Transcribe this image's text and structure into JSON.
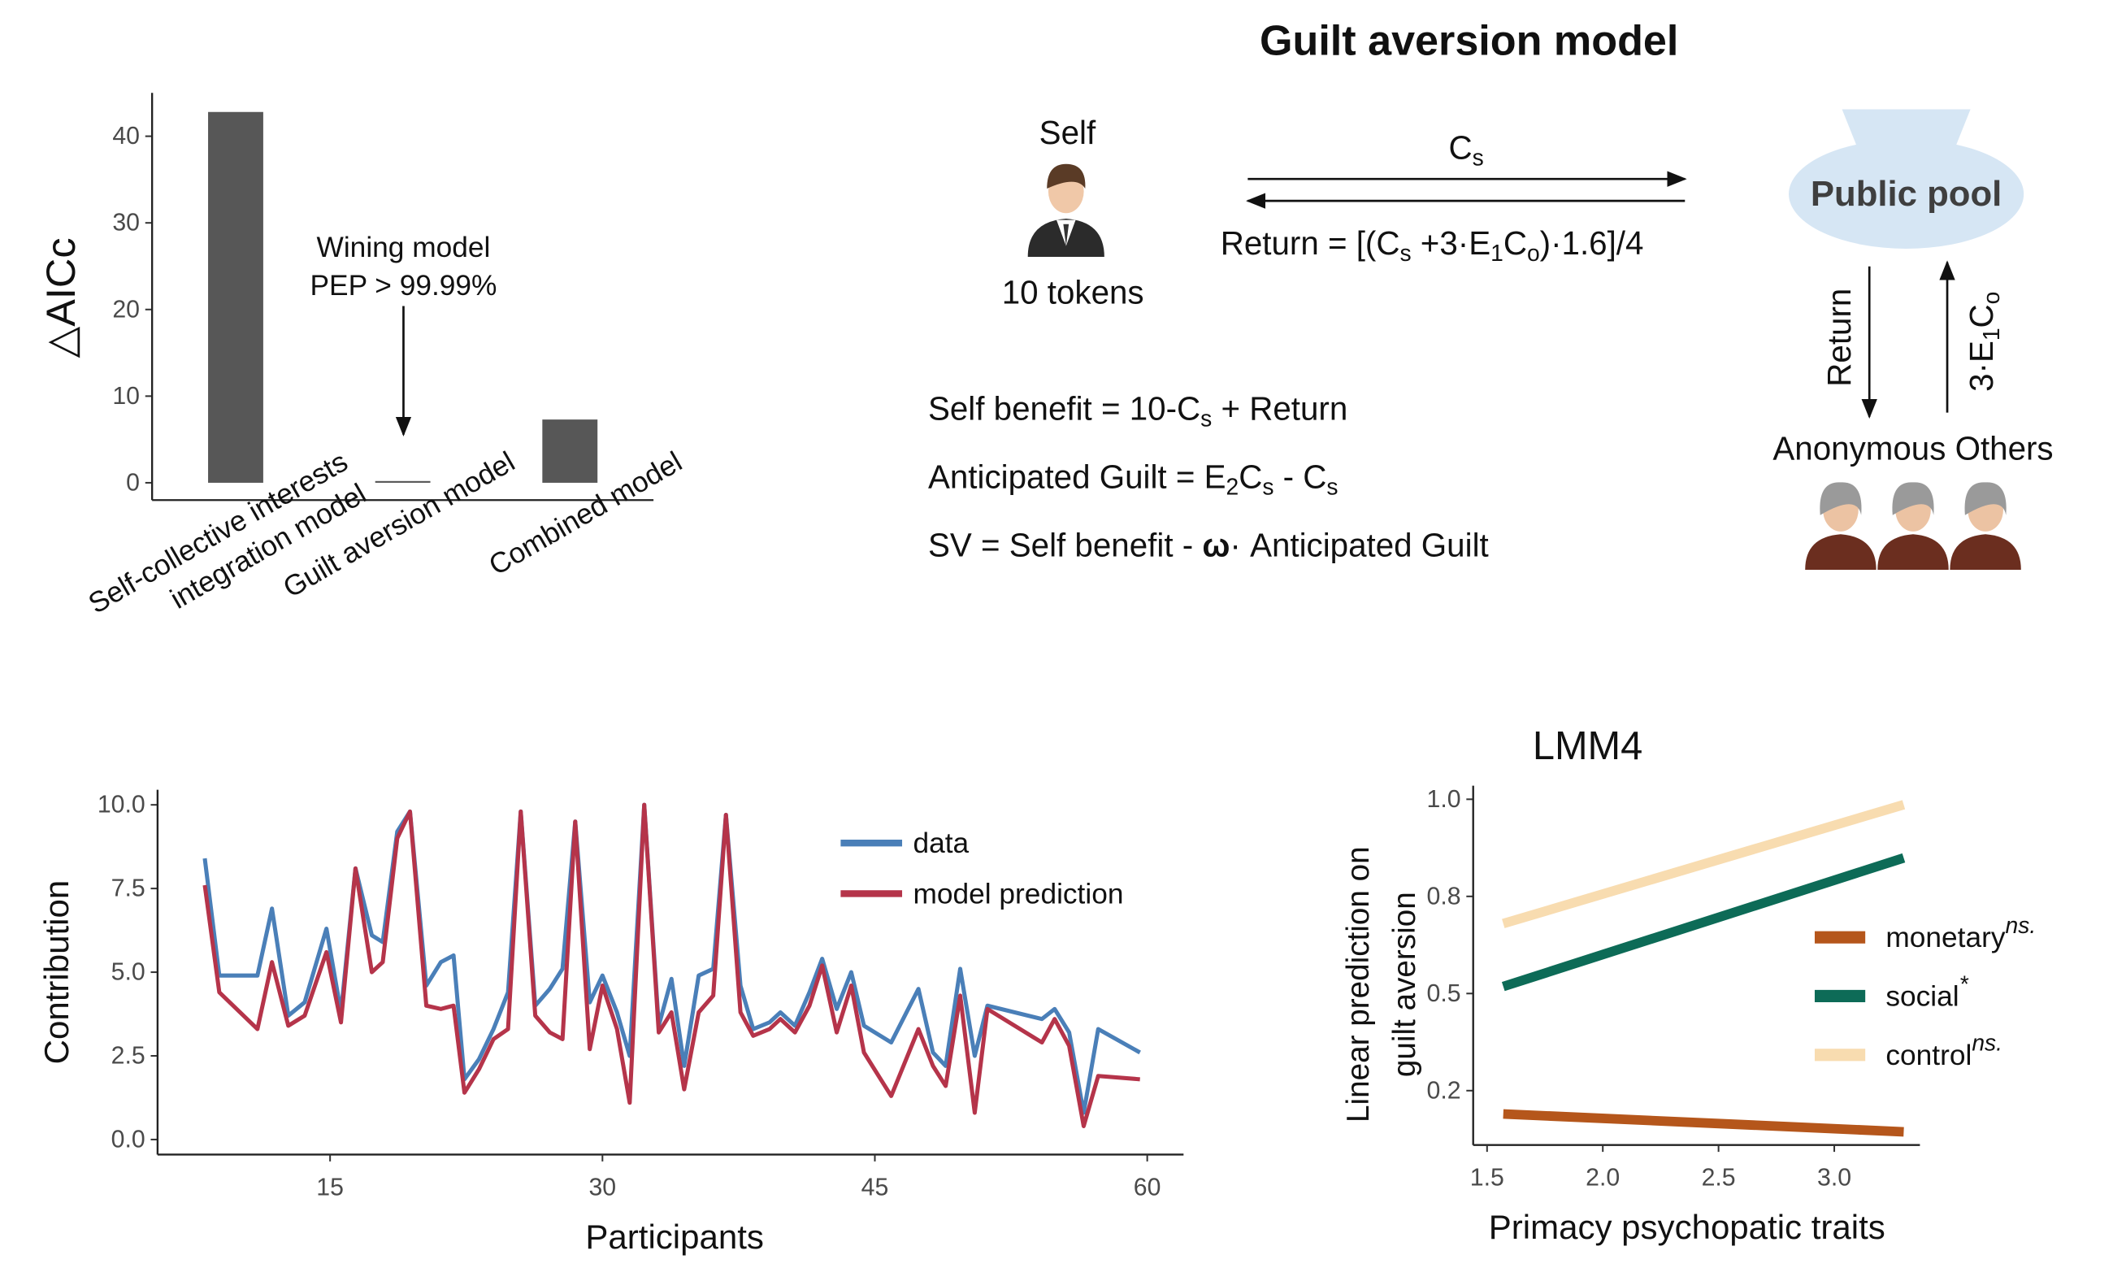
{
  "chart_data": [
    {
      "type": "bar",
      "y_label": "△AICc",
      "categories": [
        [
          "Self-collective interests",
          "integration model"
        ],
        [
          "Guilt aversion model"
        ],
        [
          "Combined model"
        ]
      ],
      "values": [
        42.8,
        0.2,
        7.3
      ],
      "color": "#575757",
      "ylim": [
        -2,
        45
      ],
      "yticks": [
        0,
        10,
        20,
        30,
        40
      ],
      "annotation": [
        "Wining model",
        "PEP > 99.99%"
      ]
    },
    {
      "type": "line",
      "x_label": "Participants",
      "y_label": "Contribution",
      "x": [
        8.1,
        8.9,
        11.0,
        11.8,
        12.7,
        13.6,
        14.8,
        15.6,
        16.4,
        17.3,
        17.9,
        18.7,
        19.4,
        20.3,
        21.1,
        21.8,
        22.4,
        23.2,
        24.0,
        24.8,
        25.5,
        26.3,
        27.1,
        27.8,
        28.5,
        29.3,
        30.0,
        30.8,
        31.5,
        32.3,
        33.1,
        33.8,
        34.5,
        35.3,
        36.1,
        36.8,
        37.6,
        38.3,
        39.2,
        39.8,
        40.6,
        41.4,
        42.1,
        42.9,
        43.7,
        44.4,
        45.9,
        47.4,
        48.2,
        48.9,
        49.7,
        50.5,
        51.2,
        54.2,
        54.9,
        55.7,
        56.5,
        57.3,
        59.6
      ],
      "series": [
        {
          "name": "data",
          "color": "#4a7fb8",
          "values": [
            8.4,
            4.9,
            4.9,
            6.9,
            3.7,
            4.1,
            6.3,
            3.8,
            8.1,
            6.1,
            5.9,
            9.2,
            9.8,
            4.6,
            5.3,
            5.5,
            1.8,
            2.4,
            3.3,
            4.4,
            9.8,
            4.0,
            4.5,
            5.1,
            9.5,
            4.1,
            4.9,
            3.8,
            2.5,
            10.0,
            3.4,
            4.8,
            2.2,
            4.9,
            5.1,
            9.7,
            4.6,
            3.3,
            3.5,
            3.8,
            3.4,
            4.4,
            5.4,
            3.9,
            5.0,
            3.4,
            2.9,
            4.5,
            2.6,
            2.2,
            5.1,
            2.5,
            4.0,
            3.6,
            3.9,
            3.2,
            0.8,
            3.3,
            2.6
          ]
        },
        {
          "name": "model prediction",
          "color": "#b5344a",
          "values": [
            7.6,
            4.4,
            3.3,
            5.3,
            3.4,
            3.7,
            5.6,
            3.5,
            8.1,
            5.0,
            5.3,
            9.0,
            9.8,
            4.0,
            3.9,
            4.0,
            1.4,
            2.1,
            3.0,
            3.3,
            9.8,
            3.7,
            3.2,
            3.0,
            9.5,
            2.7,
            4.6,
            3.3,
            1.1,
            10.0,
            3.2,
            3.8,
            1.5,
            3.8,
            4.3,
            9.7,
            3.8,
            3.1,
            3.3,
            3.6,
            3.2,
            4.0,
            5.2,
            3.2,
            4.6,
            2.6,
            1.3,
            3.3,
            2.2,
            1.6,
            4.3,
            0.8,
            3.9,
            2.9,
            3.6,
            2.8,
            0.4,
            1.9,
            1.8
          ]
        }
      ],
      "xlim": [
        5.5,
        62
      ],
      "xticks": [
        15,
        30,
        45,
        60
      ],
      "ylim": [
        -0.45,
        10.45
      ],
      "yticks": [
        {
          "value": 0,
          "label": "0.0"
        },
        {
          "value": 2.5,
          "label": "2.5"
        },
        {
          "value": 5,
          "label": "5.0"
        },
        {
          "value": 7.5,
          "label": "7.5"
        },
        {
          "value": 10,
          "label": "10.0"
        }
      ]
    },
    {
      "type": "line",
      "title": "LMM4",
      "x_label": "Primacy psychopatic traits",
      "y_label": [
        "Linear prediction on",
        "guilt aversion"
      ],
      "series": [
        {
          "name": "monetary",
          "superscript": "ns.",
          "color": "#b5561b",
          "x": [
            1.57,
            3.3
          ],
          "values": [
            0.19,
            0.144
          ]
        },
        {
          "name": "social",
          "superscript": "*",
          "color": "#0d6b57",
          "x": [
            1.57,
            3.3
          ],
          "values": [
            0.518,
            0.849
          ]
        },
        {
          "name": "control",
          "superscript": "ns.",
          "color": "#f8dcb0",
          "x": [
            1.57,
            3.3
          ],
          "values": [
            0.68,
            0.986
          ]
        }
      ],
      "xlim": [
        1.44,
        3.37
      ],
      "xticks": [
        1.5,
        {
          "value": 2,
          "label": "2.0"
        },
        2.5,
        {
          "value": 3,
          "label": "3.0"
        }
      ],
      "ylim": [
        0.11,
        1.035
      ],
      "yticks": [
        {
          "value": 0.25,
          "label": "0.2"
        },
        0.5,
        {
          "value": 0.75,
          "label": "0.8"
        },
        {
          "value": 1,
          "label": "1.0"
        }
      ]
    }
  ],
  "diagram": {
    "title": "Guilt aversion model",
    "self": "Self",
    "tokens": "10 tokens",
    "contribution": [
      "C",
      {
        "sub": "s"
      }
    ],
    "return_formula": [
      "Return = [(C",
      {
        "sub": "s"
      },
      " +3·E",
      {
        "sub": "1"
      },
      "C",
      {
        "sub": "o"
      },
      ")·1.6]/4"
    ],
    "pool": "Public pool",
    "return_arrow": [
      "Return"
    ],
    "others_arrow": [
      "3·E",
      {
        "sub": "1"
      },
      "C",
      {
        "sub": "o"
      }
    ],
    "others": "Anonymous Others",
    "equations": [
      [
        "Self benefit = 10-C",
        {
          "sub": "s"
        },
        " + Return"
      ],
      [
        "Anticipated Guilt = E",
        {
          "sub": "2"
        },
        "C",
        {
          "sub": "s"
        },
        " - C",
        {
          "sub": "s"
        }
      ],
      [
        "SV = Self benefit - ",
        {
          "bold": "ω"
        },
        "· Anticipated Guilt"
      ]
    ]
  }
}
